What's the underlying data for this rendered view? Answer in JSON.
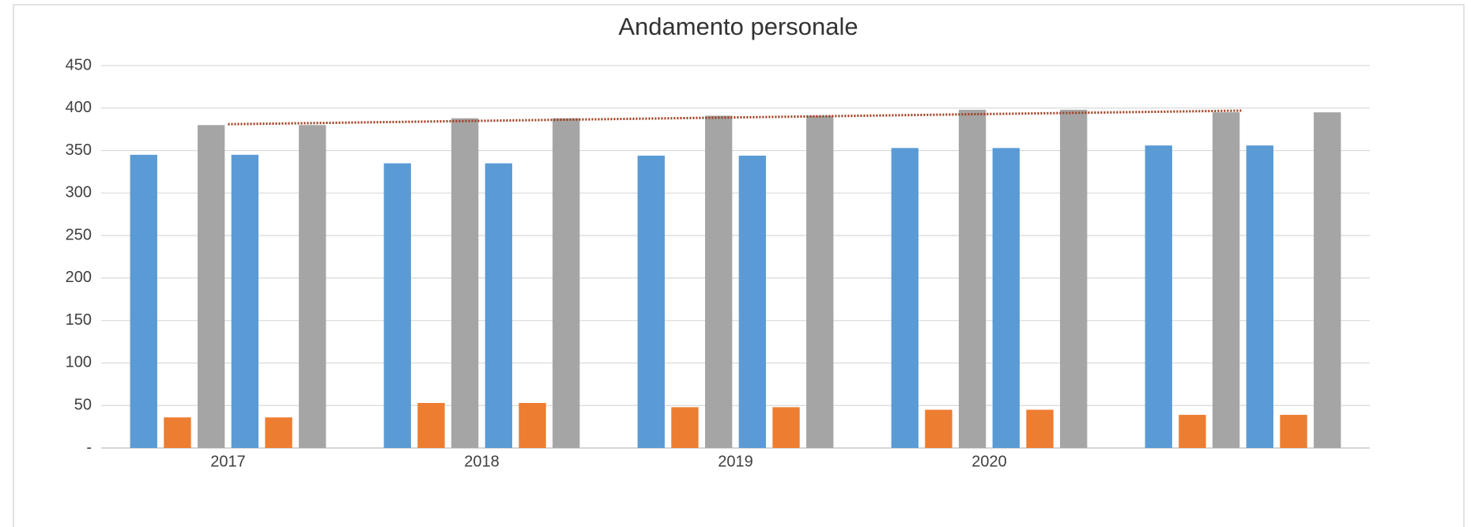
{
  "chart_data": {
    "type": "bar",
    "title": "Andamento personale",
    "categories": [
      "2017",
      "2018",
      "2019",
      "2020",
      null
    ],
    "series": [
      {
        "color": "#5b9bd5",
        "values": [
          345,
          335,
          344,
          353,
          356
        ]
      },
      {
        "color": "#ed7d31",
        "values": [
          36,
          53,
          48,
          45,
          39
        ]
      },
      {
        "color": "#a5a5a5",
        "values": [
          380,
          388,
          391,
          398,
          395
        ]
      },
      {
        "color": "#5b9bd5",
        "values": [
          345,
          335,
          344,
          353,
          356
        ]
      },
      {
        "color": "#ed7d31",
        "values": [
          36,
          53,
          48,
          45,
          39
        ]
      },
      {
        "color": "#a5a5a5",
        "values": [
          380,
          388,
          391,
          398,
          395
        ]
      },
      {
        "type": "line",
        "style": "dotted",
        "color": "#9e3b1b",
        "values": [
          381,
          385,
          389,
          393,
          397
        ]
      }
    ],
    "ylim": [
      0,
      450
    ],
    "yticks": [
      {
        "value": 0,
        "label": "-"
      },
      50,
      100,
      150,
      200,
      250,
      300,
      350,
      400,
      450
    ],
    "grid": true
  }
}
